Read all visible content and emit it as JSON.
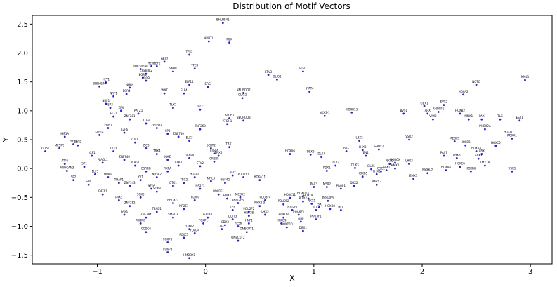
{
  "chart_data": {
    "type": "scatter",
    "title": "Distribution of Motif Vectors",
    "xlabel": "X",
    "ylabel": "Y",
    "xlim": [
      -1.6,
      3.2
    ],
    "ylim": [
      -1.65,
      2.65
    ],
    "xticks": [
      -1,
      0,
      1,
      2,
      3
    ],
    "xtick_labels": [
      "−1",
      "0",
      "1",
      "2",
      "3"
    ],
    "yticks": [
      -1.5,
      -1.0,
      -0.5,
      0.0,
      0.5,
      1.0,
      1.5,
      2.0,
      2.5
    ],
    "ytick_labels": [
      "−1.5",
      "−1.0",
      "−0.5",
      "0.0",
      "0.5",
      "1.0",
      "1.5",
      "2.0",
      "2.5"
    ],
    "grid": false,
    "point_color": "#2020e0",
    "points": [
      {
        "x": 0.16,
        "y": 2.52,
        "label": "BHLHE41"
      },
      {
        "x": 0.03,
        "y": 2.2,
        "label": "ARNTL"
      },
      {
        "x": 0.22,
        "y": 2.18,
        "label": "MLX"
      },
      {
        "x": -0.15,
        "y": 1.97,
        "label": "TFE3"
      },
      {
        "x": -0.38,
        "y": 1.85,
        "label": "HES7"
      },
      {
        "x": -0.5,
        "y": 1.77,
        "label": "HEY1"
      },
      {
        "x": -0.45,
        "y": 1.77,
        "label": "HEY2"
      },
      {
        "x": -0.6,
        "y": 1.72,
        "label": "AHR::ARNT"
      },
      {
        "x": -0.3,
        "y": 1.68,
        "label": "SNP8"
      },
      {
        "x": -0.55,
        "y": 1.64,
        "label": "CREB3L2"
      },
      {
        "x": -0.58,
        "y": 1.57,
        "label": "EGR3"
      },
      {
        "x": -0.92,
        "y": 1.49,
        "label": "HEY1"
      },
      {
        "x": -0.98,
        "y": 1.42,
        "label": "BHLHE40"
      },
      {
        "x": -0.55,
        "y": 1.52,
        "label": "HES5"
      },
      {
        "x": -0.7,
        "y": 1.4,
        "label": "NHLH"
      },
      {
        "x": -0.38,
        "y": 1.3,
        "label": "WNT"
      },
      {
        "x": -0.73,
        "y": 1.29,
        "label": "EGR4"
      },
      {
        "x": -0.85,
        "y": 1.25,
        "label": "NRF1"
      },
      {
        "x": -0.15,
        "y": 1.45,
        "label": "ELF14"
      },
      {
        "x": -0.1,
        "y": 1.73,
        "label": "TFEB"
      },
      {
        "x": 0.02,
        "y": 1.41,
        "label": "ERG"
      },
      {
        "x": 0.58,
        "y": 1.62,
        "label": "ETV3"
      },
      {
        "x": 0.9,
        "y": 1.68,
        "label": "ETV1"
      },
      {
        "x": 0.66,
        "y": 1.54,
        "label": "OLIG1"
      },
      {
        "x": 0.96,
        "y": 1.33,
        "label": "STAT4"
      },
      {
        "x": 0.35,
        "y": 1.31,
        "label": "NEUROD2"
      },
      {
        "x": 0.34,
        "y": 1.22,
        "label": "OLIG2"
      },
      {
        "x": -0.2,
        "y": 1.3,
        "label": "ELF4"
      },
      {
        "x": -0.05,
        "y": 1.02,
        "label": "TFCC"
      },
      {
        "x": -0.3,
        "y": 1.05,
        "label": "TLX1"
      },
      {
        "x": 0.22,
        "y": 0.87,
        "label": "BACH1"
      },
      {
        "x": 0.2,
        "y": 0.77,
        "label": "ATOH1"
      },
      {
        "x": 0.35,
        "y": 0.83,
        "label": "NEUROD3"
      },
      {
        "x": 0.22,
        "y": 0.37,
        "label": "TBX1"
      },
      {
        "x": 0.05,
        "y": 0.35,
        "label": "SCRT2"
      },
      {
        "x": 0.08,
        "y": 0.26,
        "label": "FIGLA"
      },
      {
        "x": 0.12,
        "y": 0.22,
        "label": "PAX6"
      },
      {
        "x": 1.1,
        "y": 0.91,
        "label": "NKX3-1"
      },
      {
        "x": 1.35,
        "y": 0.97,
        "label": "HOXB13"
      },
      {
        "x": 0.78,
        "y": 0.25,
        "label": "HOXA6"
      },
      {
        "x": 0.97,
        "y": 0.24,
        "label": "DLX6"
      },
      {
        "x": 1.07,
        "y": 0.2,
        "label": "DLX4"
      },
      {
        "x": 1.42,
        "y": 0.48,
        "label": "LBX2"
      },
      {
        "x": 1.45,
        "y": 0.32,
        "label": "LHX8"
      },
      {
        "x": 1.3,
        "y": 0.3,
        "label": "BSX"
      },
      {
        "x": 1.48,
        "y": 0.22,
        "label": "EN1"
      },
      {
        "x": 1.2,
        "y": 0.05,
        "label": "DLX2"
      },
      {
        "x": 1.38,
        "y": 0.01,
        "label": "DLX3"
      },
      {
        "x": 1.53,
        "y": -0.01,
        "label": "DLX5"
      },
      {
        "x": 1.45,
        "y": -0.14,
        "label": "HOXB5"
      },
      {
        "x": 1.12,
        "y": -0.04,
        "label": "PDX1"
      },
      {
        "x": 1.12,
        "y": -0.32,
        "label": "MSX2"
      },
      {
        "x": 1.0,
        "y": -0.32,
        "label": "PAX3"
      },
      {
        "x": 1.58,
        "y": -0.1,
        "label": "LHX2"
      },
      {
        "x": 1.62,
        "y": -0.05,
        "label": "GSC2"
      },
      {
        "x": 1.7,
        "y": 0.08,
        "label": "NKX2"
      },
      {
        "x": 1.75,
        "y": 0.1,
        "label": "NOBOX"
      },
      {
        "x": 1.67,
        "y": -0.03,
        "label": "ALX1"
      },
      {
        "x": 1.75,
        "y": 0.0,
        "label": "HMX2"
      },
      {
        "x": 1.6,
        "y": 0.33,
        "label": "SHOX2"
      },
      {
        "x": 1.88,
        "y": 0.5,
        "label": "VSX2"
      },
      {
        "x": 1.83,
        "y": 0.95,
        "label": "BVS1"
      },
      {
        "x": 2.02,
        "y": 1.08,
        "label": "GBX1"
      },
      {
        "x": 2.05,
        "y": 0.95,
        "label": "ARX"
      },
      {
        "x": 2.1,
        "y": 0.85,
        "label": "VAX2"
      },
      {
        "x": 2.15,
        "y": 0.98,
        "label": "RHOXF1"
      },
      {
        "x": 2.2,
        "y": 1.1,
        "label": "EVX2"
      },
      {
        "x": 2.5,
        "y": 1.45,
        "label": "NOTO"
      },
      {
        "x": 2.38,
        "y": 1.28,
        "label": "HOXA2"
      },
      {
        "x": 2.35,
        "y": 0.95,
        "label": "HOXB2"
      },
      {
        "x": 2.43,
        "y": 0.85,
        "label": "MNX1"
      },
      {
        "x": 2.55,
        "y": 0.85,
        "label": "PAX"
      },
      {
        "x": 2.58,
        "y": 0.68,
        "label": "PHOX2A"
      },
      {
        "x": 2.72,
        "y": 0.85,
        "label": "TLX"
      },
      {
        "x": 2.9,
        "y": 0.83,
        "label": "ESX1"
      },
      {
        "x": 2.95,
        "y": 1.53,
        "label": "MML1"
      },
      {
        "x": 2.8,
        "y": 0.58,
        "label": "HOXD1"
      },
      {
        "x": 2.83,
        "y": 0.52,
        "label": "HOXA1"
      },
      {
        "x": 2.68,
        "y": 0.39,
        "label": "HOXC5"
      },
      {
        "x": 2.3,
        "y": 0.47,
        "label": "MEOX1"
      },
      {
        "x": 2.4,
        "y": 0.4,
        "label": "HOXB5"
      },
      {
        "x": 2.5,
        "y": 0.3,
        "label": "HOXA5"
      },
      {
        "x": 2.55,
        "y": 0.25,
        "label": "ARX"
      },
      {
        "x": 2.52,
        "y": 0.17,
        "label": "ALX3"
      },
      {
        "x": 2.32,
        "y": 0.18,
        "label": "LHX6"
      },
      {
        "x": 2.2,
        "y": 0.22,
        "label": "PAX7"
      },
      {
        "x": 2.35,
        "y": 0.03,
        "label": "HOXC6"
      },
      {
        "x": 2.58,
        "y": 0.05,
        "label": "LMX1A"
      },
      {
        "x": 2.45,
        "y": -0.05,
        "label": "HOXB6"
      },
      {
        "x": 2.22,
        "y": -0.03,
        "label": "HOXA4"
      },
      {
        "x": 2.05,
        "y": -0.08,
        "label": "NKX6-2"
      },
      {
        "x": 2.83,
        "y": -0.05,
        "label": "VSX1"
      },
      {
        "x": 1.92,
        "y": -0.18,
        "label": "EMX1"
      },
      {
        "x": 1.88,
        "y": 0.08,
        "label": "LHX3"
      },
      {
        "x": 1.58,
        "y": -0.28,
        "label": "BARX2"
      },
      {
        "x": 1.37,
        "y": -0.3,
        "label": "DBX2"
      },
      {
        "x": 1.25,
        "y": -0.35,
        "label": "PROP1"
      },
      {
        "x": 0.95,
        "y": -0.52,
        "label": "HOXD8"
      },
      {
        "x": 0.98,
        "y": -0.61,
        "label": "NKX1"
      },
      {
        "x": 0.9,
        "y": -0.57,
        "label": "PITX2"
      },
      {
        "x": 1.05,
        "y": -0.67,
        "label": "ISX"
      },
      {
        "x": 1.13,
        "y": -0.56,
        "label": "POU4F3"
      },
      {
        "x": 0.78,
        "y": -0.51,
        "label": "HOXC11"
      },
      {
        "x": 0.9,
        "y": -0.48,
        "label": "HOXD13"
      },
      {
        "x": 0.72,
        "y": -0.62,
        "label": "POU3F2"
      },
      {
        "x": 0.8,
        "y": -0.72,
        "label": "POU2F1"
      },
      {
        "x": 0.86,
        "y": -0.8,
        "label": "POU6F2"
      },
      {
        "x": 0.88,
        "y": -0.92,
        "label": "OBP"
      },
      {
        "x": 1.02,
        "y": -0.72,
        "label": "TLX2"
      },
      {
        "x": 1.15,
        "y": -0.7,
        "label": "HOXB8"
      },
      {
        "x": 1.25,
        "y": -0.72,
        "label": "HLX"
      },
      {
        "x": 1.02,
        "y": -0.88,
        "label": "POU3F1"
      },
      {
        "x": 0.72,
        "y": -0.85,
        "label": "HOXD3"
      },
      {
        "x": 0.55,
        "y": -0.8,
        "label": "LHX5"
      },
      {
        "x": 0.9,
        "y": -1.08,
        "label": "DBX1"
      },
      {
        "x": 0.75,
        "y": -1.02,
        "label": "HOXD10"
      },
      {
        "x": 0.7,
        "y": -0.95,
        "label": "HOXB9"
      },
      {
        "x": 0.4,
        "y": -0.75,
        "label": "POU2F2"
      },
      {
        "x": 0.5,
        "y": -0.65,
        "label": "NKX2-3"
      },
      {
        "x": 0.3,
        "y": -0.6,
        "label": "POU2F3"
      },
      {
        "x": 0.55,
        "y": -0.55,
        "label": "POU3F4"
      },
      {
        "x": 0.32,
        "y": -0.5,
        "label": "MEOX2"
      },
      {
        "x": 0.2,
        "y": -0.52,
        "label": "EMX2"
      },
      {
        "x": 0.12,
        "y": -0.45,
        "label": "POU1F1"
      },
      {
        "x": 0.25,
        "y": -0.72,
        "label": "TEF"
      },
      {
        "x": 0.4,
        "y": -0.82,
        "label": "HNF1B"
      },
      {
        "x": 0.4,
        "y": -0.95,
        "label": "HNF1"
      },
      {
        "x": 0.3,
        "y": -1.0,
        "label": "HES6"
      },
      {
        "x": 0.38,
        "y": -1.1,
        "label": "ONECUT1"
      },
      {
        "x": 0.3,
        "y": -1.25,
        "label": "ONECUT2"
      },
      {
        "x": 0.25,
        "y": -0.88,
        "label": "DDIT3"
      },
      {
        "x": 0.18,
        "y": -0.98,
        "label": "CDX2"
      },
      {
        "x": 0.15,
        "y": -1.05,
        "label": "CDX1"
      },
      {
        "x": 0.02,
        "y": -0.85,
        "label": "GATA4"
      },
      {
        "x": -0.02,
        "y": -0.95,
        "label": "FOXP1"
      },
      {
        "x": -0.15,
        "y": -1.05,
        "label": "FOXA2"
      },
      {
        "x": -0.2,
        "y": -1.2,
        "label": "FOXC1"
      },
      {
        "x": -0.1,
        "y": -1.12,
        "label": "FOXO4"
      },
      {
        "x": -0.35,
        "y": -1.28,
        "label": "FOXP3"
      },
      {
        "x": -0.55,
        "y": -1.1,
        "label": "CCDC6"
      },
      {
        "x": -0.35,
        "y": -1.45,
        "label": "FOXP3"
      },
      {
        "x": -0.15,
        "y": -1.55,
        "label": "HMBOX1"
      },
      {
        "x": 0.5,
        "y": -0.2,
        "label": "HOXA11"
      },
      {
        "x": 0.35,
        "y": -0.15,
        "label": "POU2F1"
      },
      {
        "x": 0.25,
        "y": -0.12,
        "label": "NFIX"
      },
      {
        "x": 0.18,
        "y": -0.25,
        "label": "HNF4G"
      },
      {
        "x": 0.05,
        "y": -0.22,
        "label": "NFIL3"
      },
      {
        "x": 0.08,
        "y": 0.12,
        "label": "CREB5"
      },
      {
        "x": -0.05,
        "y": 0.04,
        "label": "ETV2"
      },
      {
        "x": -0.1,
        "y": -0.15,
        "label": "HOXA9"
      },
      {
        "x": -0.2,
        "y": -0.25,
        "label": "TBX2"
      },
      {
        "x": -0.3,
        "y": -0.3,
        "label": "OTX1"
      },
      {
        "x": -0.45,
        "y": -0.4,
        "label": "SOX9"
      },
      {
        "x": -0.6,
        "y": -0.5,
        "label": "SOX5"
      },
      {
        "x": -0.8,
        "y": -0.55,
        "label": "PAX5"
      },
      {
        "x": -0.95,
        "y": -0.45,
        "label": "GATA1"
      },
      {
        "x": -0.7,
        "y": -0.65,
        "label": "ZNF282"
      },
      {
        "x": -0.75,
        "y": -0.8,
        "label": "PAX1"
      },
      {
        "x": -0.55,
        "y": -0.85,
        "label": "ZNF384"
      },
      {
        "x": -0.6,
        "y": -0.95,
        "label": "PRDM1"
      },
      {
        "x": -0.45,
        "y": -0.75,
        "label": "TEAD1"
      },
      {
        "x": -0.3,
        "y": -0.6,
        "label": "RHOXF2"
      },
      {
        "x": -0.3,
        "y": -0.85,
        "label": "SMAD3"
      },
      {
        "x": -0.2,
        "y": -0.7,
        "label": "NR2E1"
      },
      {
        "x": -0.1,
        "y": -0.55,
        "label": "RORA"
      },
      {
        "x": -0.05,
        "y": -0.35,
        "label": "NR2F1"
      },
      {
        "x": -1.35,
        "y": 0.35,
        "label": "MESP2"
      },
      {
        "x": -1.3,
        "y": 0.55,
        "label": "HIF1A"
      },
      {
        "x": -1.22,
        "y": 0.42,
        "label": "HIF1A"
      },
      {
        "x": -1.48,
        "y": 0.3,
        "label": "GLIS1"
      },
      {
        "x": -1.3,
        "y": 0.08,
        "label": "ATF6"
      },
      {
        "x": -1.28,
        "y": -0.04,
        "label": "MYOCAN3"
      },
      {
        "x": -1.12,
        "y": 0.03,
        "label": "SP1"
      },
      {
        "x": -1.02,
        "y": -0.1,
        "label": "ELF3"
      },
      {
        "x": -1.05,
        "y": 0.22,
        "label": "KLF1"
      },
      {
        "x": -1.18,
        "y": 0.4,
        "label": "ZBTB"
      },
      {
        "x": -1.08,
        "y": -0.28,
        "label": "SP4"
      },
      {
        "x": -1.22,
        "y": -0.2,
        "label": "SP2"
      },
      {
        "x": -0.98,
        "y": 0.58,
        "label": "KLF14"
      },
      {
        "x": -0.9,
        "y": 0.7,
        "label": "EGR1"
      },
      {
        "x": -0.85,
        "y": 0.9,
        "label": "ELF1"
      },
      {
        "x": -0.92,
        "y": 1.12,
        "label": "NRF1"
      },
      {
        "x": -0.88,
        "y": 1.05,
        "label": "SP3"
      },
      {
        "x": -0.78,
        "y": 1.0,
        "label": "ZFX"
      },
      {
        "x": -0.7,
        "y": 0.85,
        "label": "ZNF281"
      },
      {
        "x": -0.62,
        "y": 0.95,
        "label": "PATZ1"
      },
      {
        "x": -0.55,
        "y": 0.78,
        "label": "KLF9"
      },
      {
        "x": -0.45,
        "y": 0.7,
        "label": "ZBTB7A"
      },
      {
        "x": -0.35,
        "y": 0.6,
        "label": "SP8"
      },
      {
        "x": -0.25,
        "y": 0.55,
        "label": "ZNF740"
      },
      {
        "x": -0.15,
        "y": 0.48,
        "label": "ELK3"
      },
      {
        "x": -0.05,
        "y": 0.68,
        "label": "ZNF263"
      },
      {
        "x": -0.75,
        "y": 0.62,
        "label": "E2F6"
      },
      {
        "x": -0.65,
        "y": 0.45,
        "label": "CTCF"
      },
      {
        "x": -0.55,
        "y": 0.35,
        "label": "ZIC3"
      },
      {
        "x": -0.45,
        "y": 0.25,
        "label": "TBX4"
      },
      {
        "x": -0.35,
        "y": 0.15,
        "label": "MAZ"
      },
      {
        "x": -0.25,
        "y": 0.05,
        "label": "ELK4"
      },
      {
        "x": -0.15,
        "y": 0.18,
        "label": "GABPA"
      },
      {
        "x": -0.85,
        "y": 0.3,
        "label": "GLI3"
      },
      {
        "x": -0.75,
        "y": 0.15,
        "label": "ZNF740"
      },
      {
        "x": -0.65,
        "y": 0.05,
        "label": "PLAG1"
      },
      {
        "x": -0.55,
        "y": -0.05,
        "label": "ESRRB"
      },
      {
        "x": -0.45,
        "y": -0.15,
        "label": "NR5A2"
      },
      {
        "x": -0.35,
        "y": -0.05,
        "label": "RXRA"
      },
      {
        "x": -0.95,
        "y": 0.1,
        "label": "PLAGL1"
      },
      {
        "x": -0.9,
        "y": -0.15,
        "label": "HINFP"
      },
      {
        "x": -0.8,
        "y": -0.25,
        "label": "THAP1"
      },
      {
        "x": -0.7,
        "y": -0.3,
        "label": "ZNF143"
      },
      {
        "x": -0.6,
        "y": -0.2,
        "label": "YY1"
      },
      {
        "x": -0.5,
        "y": -0.35,
        "label": "NFYA"
      }
    ]
  }
}
